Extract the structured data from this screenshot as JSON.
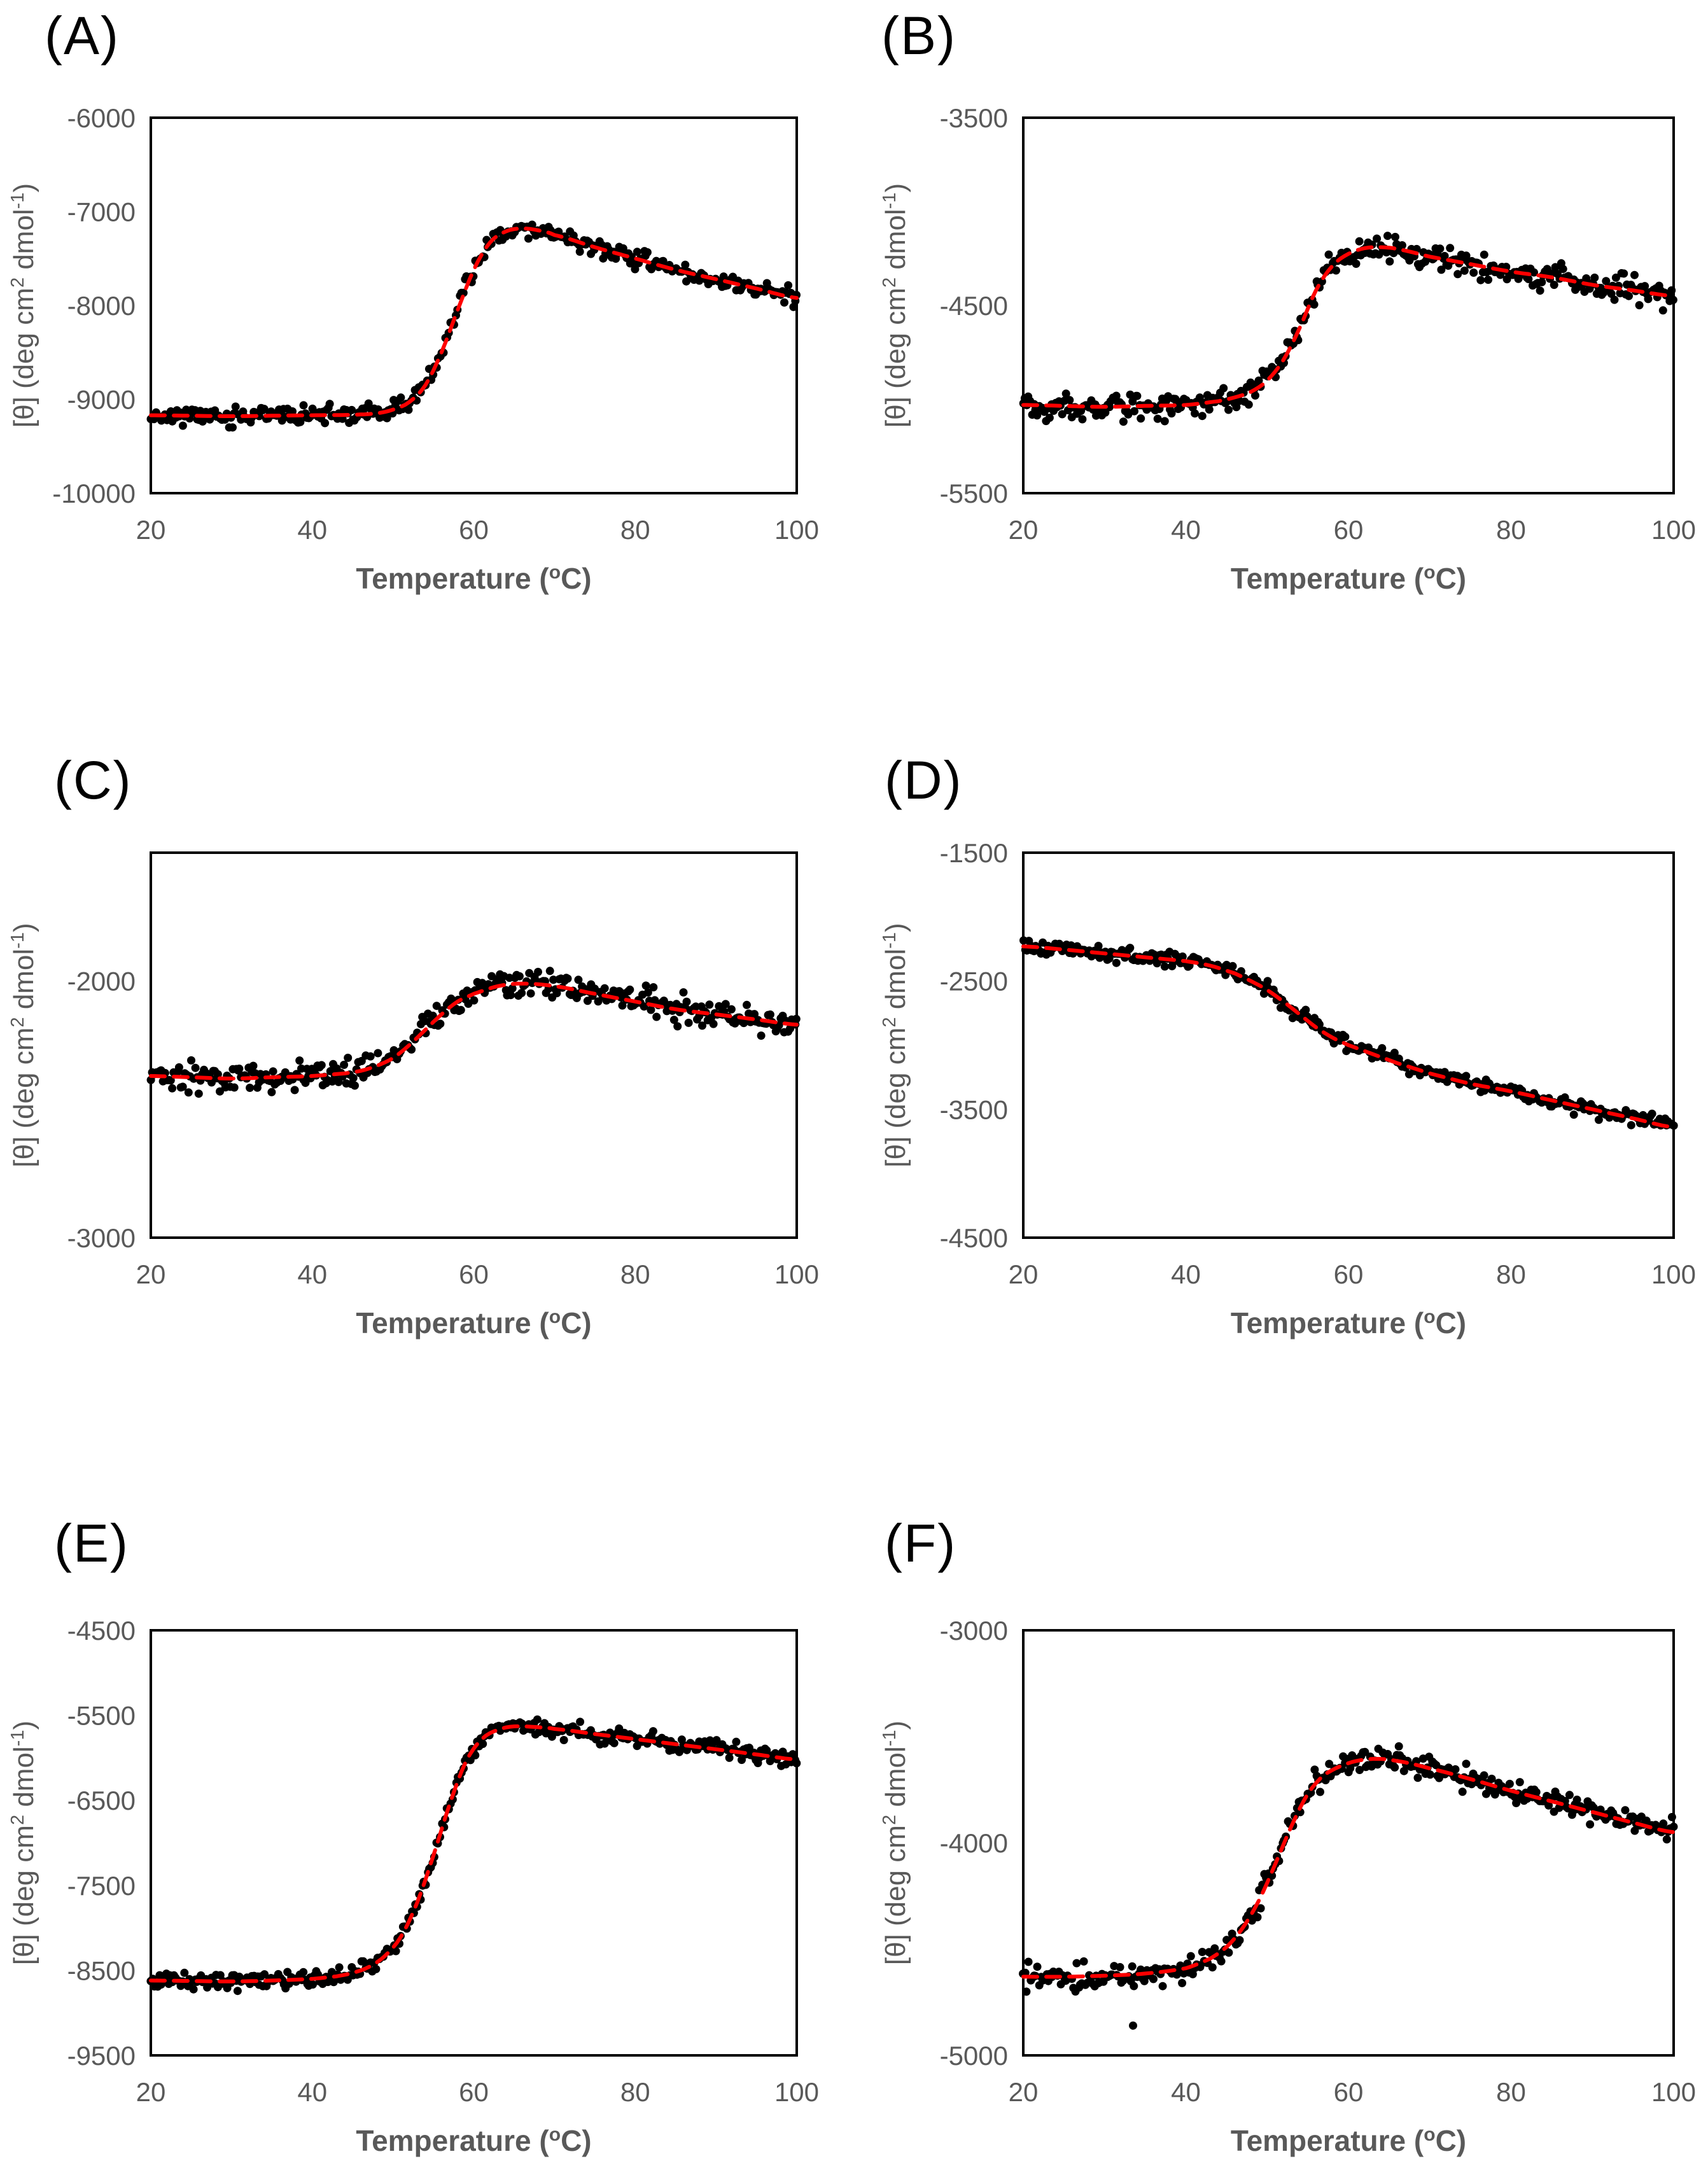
{
  "figure": {
    "type": "multi-panel-melting-curves",
    "panel_count": 6,
    "description_visible_elements": "six scatter plots of mean residue ellipticity versus temperature with red dashed sigmoidal fit lines"
  },
  "style": {
    "dot_color": "#000000",
    "fit_color": "#FF0000",
    "axis_box_color": "#000000",
    "tick_label_color": "#595959",
    "axis_title_color": "#595959",
    "panel_label_color": "#000000",
    "background": "#ffffff"
  },
  "axis_titles": {
    "x_readable": "Temperature (°C)",
    "x_parts": {
      "pre": "Temperature (",
      "sup": "o",
      "post": "C)"
    },
    "y_readable": "[θ] (deg cm² dmol⁻¹)",
    "y_parts": {
      "p1": "[θ] (deg cm",
      "sup1": "2",
      "p2": " dmol",
      "sup2": "-1",
      "p3": ")"
    }
  },
  "chart_data": [
    {
      "panel": "(A)",
      "type": "scatter",
      "xlabel": "Temperature (°C)",
      "ylabel": "[θ] (deg cm² dmol⁻¹)",
      "xlim": [
        20,
        100
      ],
      "xticks": [
        20,
        40,
        60,
        80,
        100
      ],
      "ylim": [
        -10000,
        -6000
      ],
      "yticks": [
        -6000,
        -7000,
        -8000,
        -9000,
        -10000
      ],
      "legend": "none",
      "grid": false,
      "series_black_dots": "experimental CD melt data",
      "series_red_dashed": "sigmoid fit",
      "fit_x": [
        20,
        25,
        30,
        35,
        40,
        45,
        48,
        50,
        52,
        54,
        56,
        58,
        60,
        62,
        64,
        66,
        68,
        70,
        75,
        80,
        85,
        90,
        95,
        100
      ],
      "fit_y": [
        -9170,
        -9175,
        -9180,
        -9175,
        -9170,
        -9165,
        -9150,
        -9110,
        -9030,
        -8850,
        -8500,
        -8050,
        -7620,
        -7330,
        -7210,
        -7180,
        -7200,
        -7250,
        -7380,
        -7500,
        -7620,
        -7720,
        -7820,
        -7920
      ],
      "apparent_tm_c": 58,
      "noise_sd": 46,
      "n_points": 365,
      "seed": 11,
      "outliers": []
    },
    {
      "panel": "(B)",
      "type": "scatter",
      "xlabel": "Temperature (°C)",
      "ylabel": "[θ] (deg cm² dmol⁻¹)",
      "xlim": [
        20,
        100
      ],
      "xticks": [
        20,
        40,
        60,
        80,
        100
      ],
      "ylim": [
        -5500,
        -3500
      ],
      "yticks": [
        -3500,
        -4500,
        -5500
      ],
      "legend": "none",
      "grid": false,
      "series_black_dots": "experimental CD melt data",
      "series_red_dashed": "sigmoid fit",
      "fit_x": [
        20,
        25,
        30,
        35,
        40,
        44,
        46,
        48,
        50,
        52,
        54,
        56,
        58,
        60,
        62,
        64,
        66,
        70,
        75,
        80,
        85,
        90,
        95,
        100
      ],
      "fit_y": [
        -5030,
        -5035,
        -5040,
        -5035,
        -5030,
        -5010,
        -4990,
        -4960,
        -4900,
        -4790,
        -4620,
        -4420,
        -4290,
        -4225,
        -4195,
        -4190,
        -4200,
        -4240,
        -4280,
        -4320,
        -4350,
        -4390,
        -4420,
        -4450
      ],
      "apparent_tm_c": 54,
      "noise_sd": 32,
      "n_points": 365,
      "seed": 22,
      "outliers": []
    },
    {
      "panel": "(C)",
      "type": "scatter",
      "xlabel": "Temperature (°C)",
      "ylabel": "[θ] (deg cm² dmol⁻¹)",
      "xlim": [
        20,
        100
      ],
      "xticks": [
        20,
        40,
        60,
        80,
        100
      ],
      "ylim": [
        -3000,
        -1500
      ],
      "yticks": [
        -2000,
        -3000
      ],
      "legend": "none",
      "grid": false,
      "series_black_dots": "experimental CD melt data",
      "series_red_dashed": "sigmoid fit",
      "fit_x": [
        20,
        25,
        30,
        35,
        40,
        44,
        46,
        48,
        50,
        52,
        54,
        56,
        58,
        60,
        63,
        66,
        70,
        75,
        80,
        85,
        90,
        95,
        100
      ],
      "fit_y": [
        -2370,
        -2375,
        -2380,
        -2375,
        -2370,
        -2360,
        -2350,
        -2330,
        -2300,
        -2250,
        -2190,
        -2130,
        -2080,
        -2050,
        -2020,
        -2010,
        -2020,
        -2050,
        -2080,
        -2110,
        -2130,
        -2150,
        -2170
      ],
      "apparent_tm_c": 55,
      "noise_sd": 27,
      "n_points": 365,
      "seed": 33,
      "outliers": []
    },
    {
      "panel": "(D)",
      "type": "scatter",
      "xlabel": "Temperature (°C)",
      "ylabel": "[θ] (deg cm² dmol⁻¹)",
      "xlim": [
        20,
        100
      ],
      "xticks": [
        20,
        40,
        60,
        80,
        100
      ],
      "ylim": [
        -4500,
        -1500
      ],
      "yticks": [
        -1500,
        -2500,
        -3500,
        -4500
      ],
      "legend": "none",
      "grid": false,
      "series_black_dots": "experimental CD melt data",
      "series_red_dashed": "sigmoid fit",
      "fit_x": [
        20,
        25,
        30,
        35,
        40,
        43,
        46,
        48,
        50,
        52,
        54,
        56,
        58,
        60,
        63,
        66,
        70,
        75,
        80,
        85,
        90,
        95,
        100
      ],
      "fit_y": [
        -2230,
        -2255,
        -2285,
        -2315,
        -2345,
        -2380,
        -2440,
        -2500,
        -2570,
        -2660,
        -2760,
        -2860,
        -2940,
        -3000,
        -3070,
        -3140,
        -3220,
        -3300,
        -3360,
        -3430,
        -3500,
        -3570,
        -3640
      ],
      "apparent_tm_c": 52,
      "noise_sd": 28,
      "n_points": 365,
      "seed": 44,
      "outliers": []
    },
    {
      "panel": "(E)",
      "type": "scatter",
      "xlabel": "Temperature (°C)",
      "ylabel": "[θ] (deg cm² dmol⁻¹)",
      "xlim": [
        20,
        100
      ],
      "xticks": [
        20,
        40,
        60,
        80,
        100
      ],
      "ylim": [
        -9500,
        -4500
      ],
      "yticks": [
        -4500,
        -5500,
        -6500,
        -7500,
        -8500,
        -9500
      ],
      "legend": "none",
      "grid": false,
      "series_black_dots": "experimental CD melt data",
      "series_red_dashed": "sigmoid fit",
      "fit_x": [
        20,
        25,
        30,
        35,
        40,
        43,
        45,
        47,
        49,
        51,
        53,
        55,
        57,
        59,
        61,
        63,
        65,
        68,
        70,
        75,
        80,
        85,
        90,
        95,
        100
      ],
      "fit_y": [
        -8620,
        -8625,
        -8630,
        -8620,
        -8600,
        -8570,
        -8530,
        -8460,
        -8330,
        -8100,
        -7700,
        -7150,
        -6550,
        -6050,
        -5780,
        -5670,
        -5630,
        -5640,
        -5660,
        -5720,
        -5780,
        -5840,
        -5900,
        -5960,
        -6020
      ],
      "apparent_tm_c": 53,
      "noise_sd": 46,
      "n_points": 365,
      "seed": 55,
      "outliers": []
    },
    {
      "panel": "(F)",
      "type": "scatter",
      "xlabel": "Temperature (°C)",
      "ylabel": "[θ] (deg cm² dmol⁻¹)",
      "xlim": [
        20,
        100
      ],
      "xticks": [
        20,
        40,
        60,
        80,
        100
      ],
      "ylim": [
        -5000,
        -3000
      ],
      "yticks": [
        -3000,
        -4000,
        -5000
      ],
      "legend": "none",
      "grid": false,
      "series_black_dots": "experimental CD melt data",
      "series_red_dashed": "sigmoid fit",
      "fit_x": [
        20,
        25,
        30,
        35,
        40,
        43,
        45,
        47,
        49,
        51,
        53,
        55,
        57,
        60,
        63,
        66,
        70,
        75,
        80,
        85,
        90,
        95,
        100
      ],
      "fit_y": [
        -4630,
        -4630,
        -4625,
        -4615,
        -4590,
        -4545,
        -4490,
        -4400,
        -4270,
        -4100,
        -3920,
        -3770,
        -3680,
        -3625,
        -3605,
        -3615,
        -3650,
        -3700,
        -3755,
        -3805,
        -3855,
        -3905,
        -3950
      ],
      "apparent_tm_c": 51,
      "noise_sd": 27,
      "n_points": 365,
      "seed": 66,
      "outliers": [
        [
          33.5,
          -4860
        ]
      ]
    }
  ]
}
